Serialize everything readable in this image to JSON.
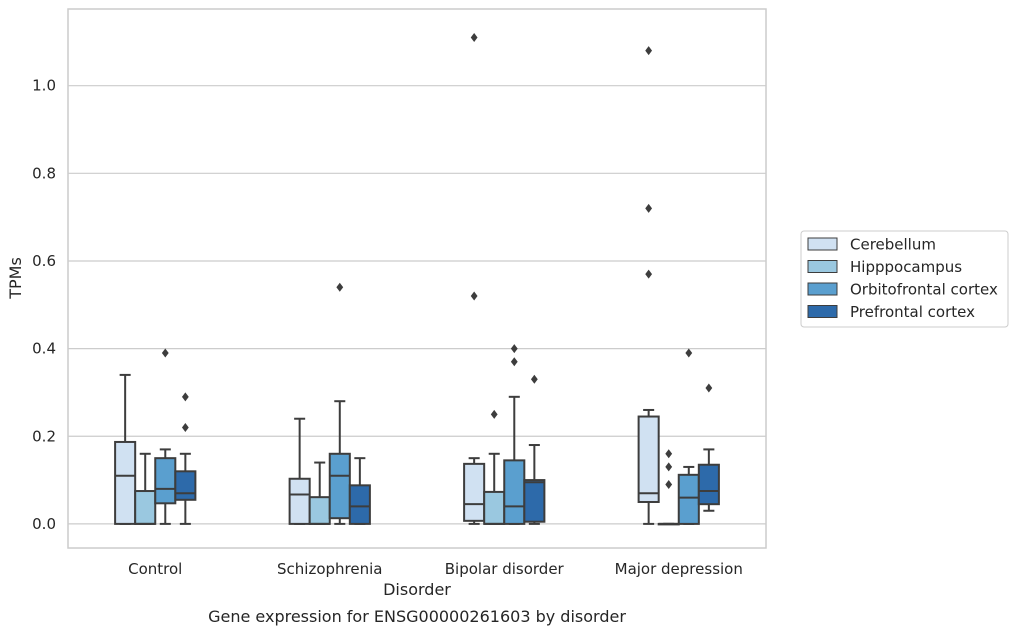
{
  "chart_data": {
    "type": "box",
    "title": "",
    "caption": "Gene expression for ENSG00000261603 by disorder",
    "xlabel": "Disorder",
    "ylabel": "TPMs",
    "ylim": [
      -0.055,
      1.175
    ],
    "yticks": [
      0.0,
      0.2,
      0.4,
      0.6,
      0.8,
      1.0
    ],
    "ytick_labels": [
      "0.0",
      "0.2",
      "0.4",
      "0.6",
      "0.8",
      "1.0"
    ],
    "grid": "horizontal",
    "legend_position": "right",
    "categories": [
      "Control",
      "Schizophrenia",
      "Bipolar disorder",
      "Major depression"
    ],
    "series": [
      {
        "name": "Cerebellum",
        "color": "#d0e1f2",
        "boxes": [
          {
            "q1": 0.0,
            "median": 0.11,
            "q3": 0.187,
            "whisker_low": 0.0,
            "whisker_high": 0.34,
            "outliers": []
          },
          {
            "q1": 0.0,
            "median": 0.067,
            "q3": 0.103,
            "whisker_low": 0.0,
            "whisker_high": 0.24,
            "outliers": []
          },
          {
            "q1": 0.007,
            "median": 0.045,
            "q3": 0.137,
            "whisker_low": 0.0,
            "whisker_high": 0.15,
            "outliers": [
              0.52,
              1.11
            ]
          },
          {
            "q1": 0.05,
            "median": 0.07,
            "q3": 0.245,
            "whisker_low": 0.0,
            "whisker_high": 0.26,
            "outliers": [
              0.57,
              0.72,
              1.08
            ]
          }
        ]
      },
      {
        "name": "Hipppocampus",
        "color": "#9ac8e0",
        "boxes": [
          {
            "q1": 0.0,
            "median": 0.0,
            "q3": 0.075,
            "whisker_low": 0.0,
            "whisker_high": 0.16,
            "outliers": []
          },
          {
            "q1": 0.0,
            "median": 0.0,
            "q3": 0.061,
            "whisker_low": 0.0,
            "whisker_high": 0.14,
            "outliers": []
          },
          {
            "q1": 0.0,
            "median": 0.0,
            "q3": 0.073,
            "whisker_low": 0.0,
            "whisker_high": 0.16,
            "outliers": [
              0.25
            ]
          },
          {
            "q1": 0.0,
            "median": 0.0,
            "q3": 0.0,
            "whisker_low": 0.0,
            "whisker_high": 0.0,
            "outliers": [
              0.09,
              0.13,
              0.16
            ]
          }
        ]
      },
      {
        "name": "Orbitofrontal cortex",
        "color": "#5a9fcf",
        "boxes": [
          {
            "q1": 0.047,
            "median": 0.08,
            "q3": 0.15,
            "whisker_low": 0.0,
            "whisker_high": 0.17,
            "outliers": [
              0.39
            ]
          },
          {
            "q1": 0.013,
            "median": 0.11,
            "q3": 0.16,
            "whisker_low": 0.0,
            "whisker_high": 0.28,
            "outliers": [
              0.54
            ]
          },
          {
            "q1": 0.0,
            "median": 0.04,
            "q3": 0.145,
            "whisker_low": 0.0,
            "whisker_high": 0.29,
            "outliers": [
              0.37,
              0.4
            ]
          },
          {
            "q1": 0.0,
            "median": 0.06,
            "q3": 0.112,
            "whisker_low": 0.0,
            "whisker_high": 0.13,
            "outliers": [
              0.39
            ]
          }
        ]
      },
      {
        "name": "Prefrontal cortex",
        "color": "#2d6aaa",
        "boxes": [
          {
            "q1": 0.055,
            "median": 0.07,
            "q3": 0.12,
            "whisker_low": 0.0,
            "whisker_high": 0.16,
            "outliers": [
              0.22,
              0.29
            ]
          },
          {
            "q1": 0.0,
            "median": 0.04,
            "q3": 0.088,
            "whisker_low": 0.0,
            "whisker_high": 0.15,
            "outliers": []
          },
          {
            "q1": 0.005,
            "median": 0.095,
            "q3": 0.1,
            "whisker_low": 0.0,
            "whisker_high": 0.18,
            "outliers": [
              0.33
            ]
          },
          {
            "q1": 0.045,
            "median": 0.075,
            "q3": 0.135,
            "whisker_low": 0.03,
            "whisker_high": 0.17,
            "outliers": [
              0.31
            ]
          }
        ]
      }
    ]
  }
}
